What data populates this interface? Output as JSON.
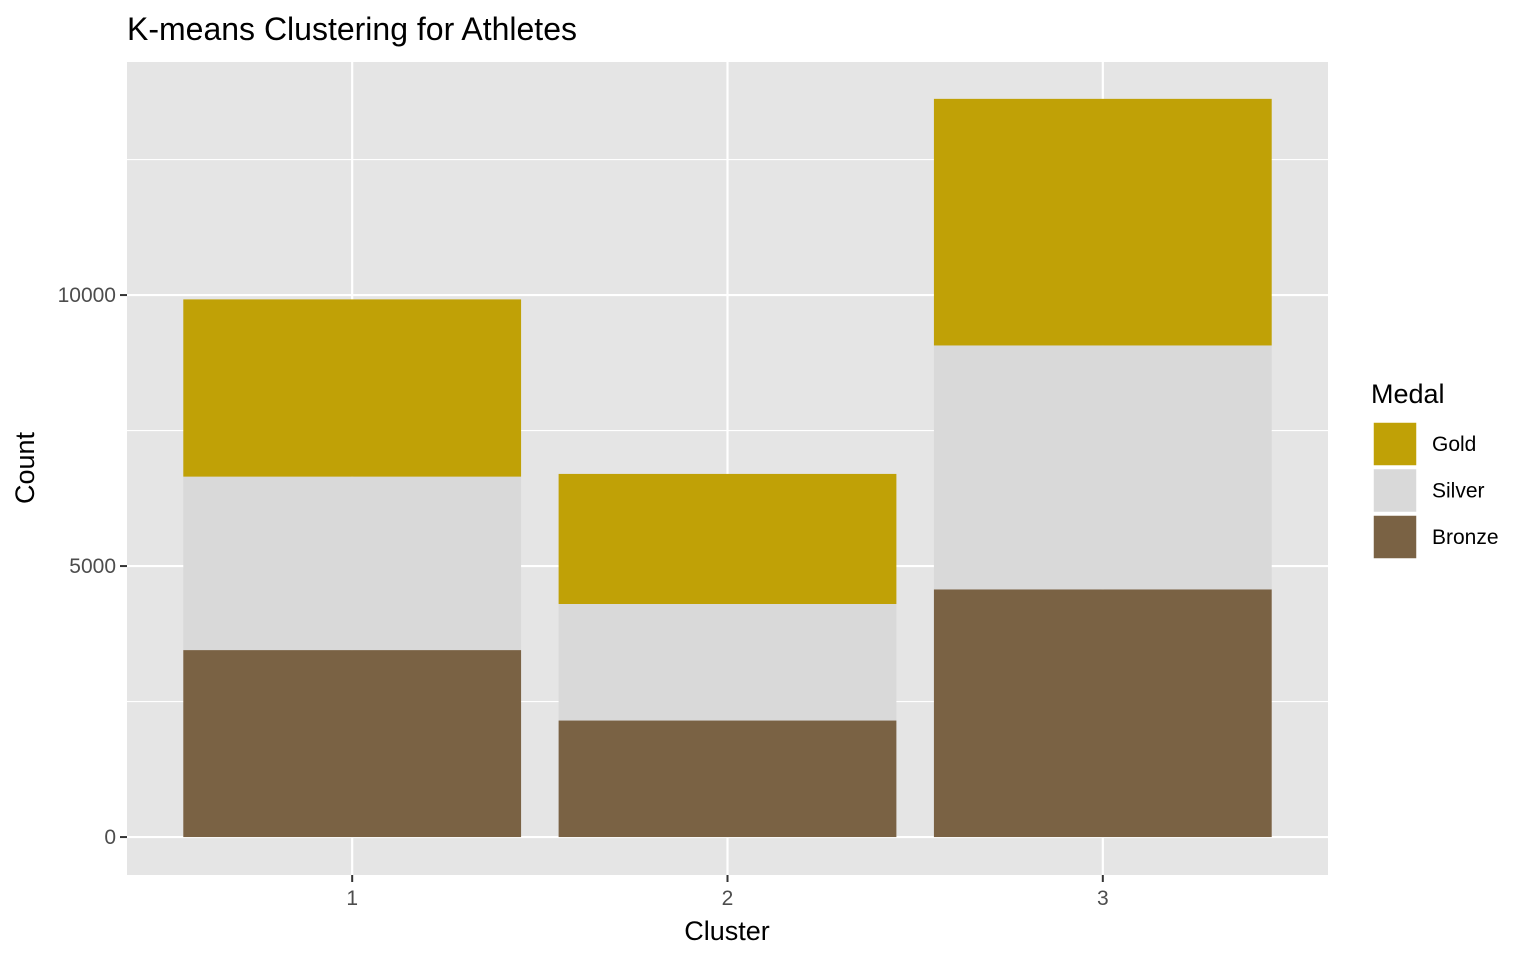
{
  "chart_data": {
    "type": "bar",
    "stacked": true,
    "title": "K-means Clustering for Athletes",
    "xlabel": "Cluster",
    "ylabel": "Count",
    "categories": [
      "1",
      "2",
      "3"
    ],
    "ylim": [
      -700,
      14300
    ],
    "yticks": [
      0,
      5000,
      10000
    ],
    "ytick_labels": [
      "0",
      "5000",
      "10000"
    ],
    "grid": true,
    "legend_title": "Medal",
    "legend_position": "right",
    "series": [
      {
        "name": "Bronze",
        "color": "#7A6244",
        "values": [
          3450,
          2150,
          4570
        ]
      },
      {
        "name": "Silver",
        "color": "#D9D9D9",
        "values": [
          3200,
          2150,
          4500
        ]
      },
      {
        "name": "Gold",
        "color": "#C0A106",
        "values": [
          3270,
          2400,
          4550
        ]
      }
    ],
    "legend_order": [
      "Gold",
      "Silver",
      "Bronze"
    ],
    "colors": {
      "panel": "#E5E5E5",
      "grid": "#FFFFFF",
      "tick": "#333333"
    }
  }
}
